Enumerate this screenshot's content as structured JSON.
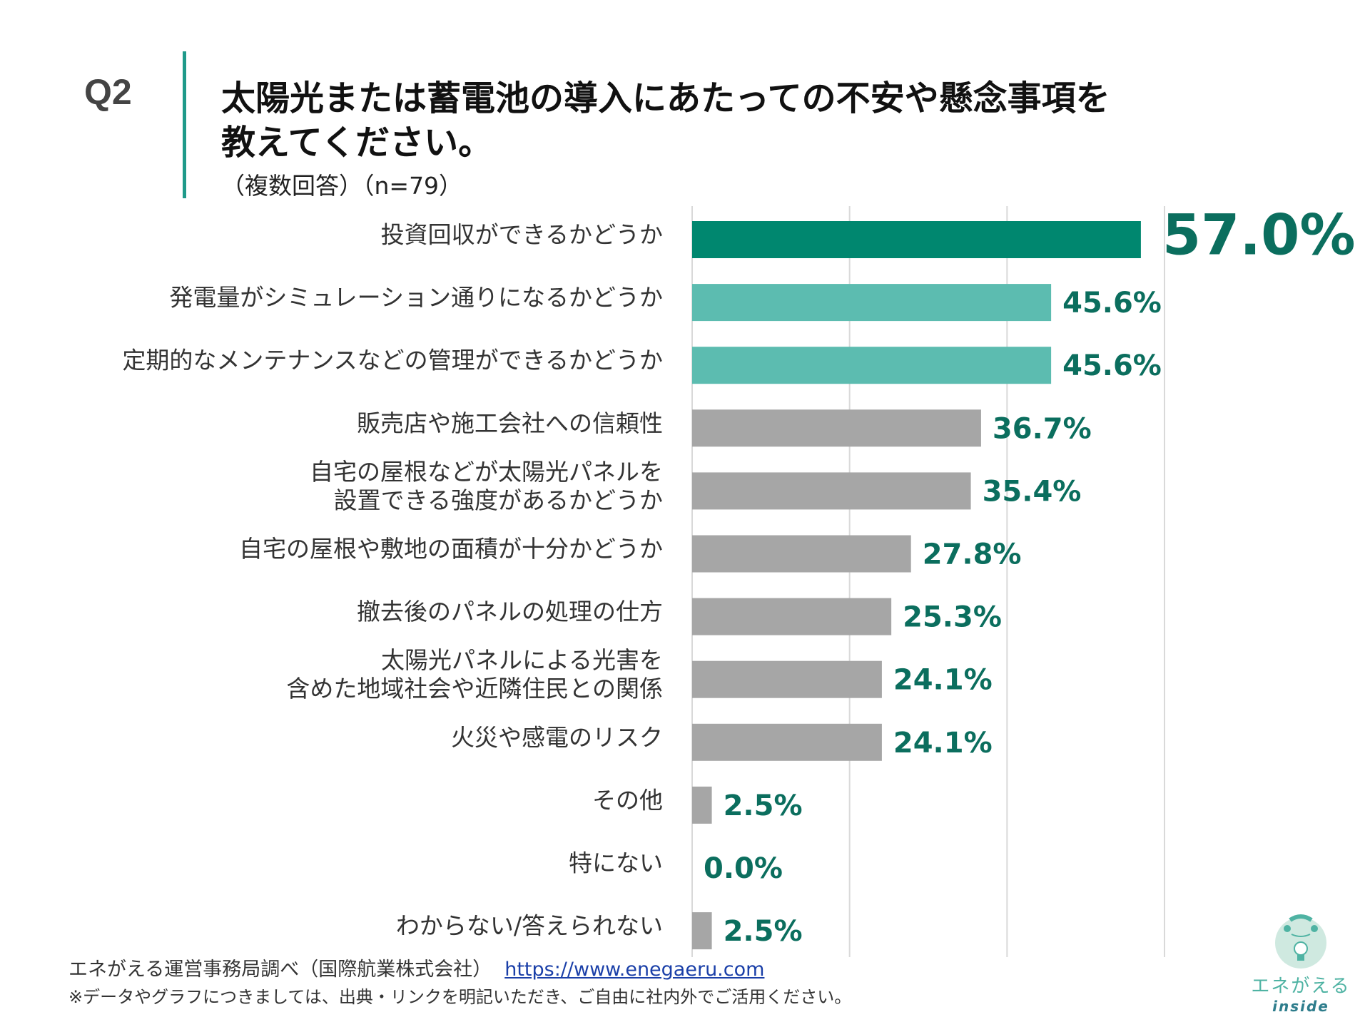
{
  "header": {
    "question_number": "Q2",
    "title_line1": "太陽光または蓄電池の導入にあたっての不安や懸念事項を",
    "title_line2": "教えてください。",
    "subtitle": "（複数回答）（n=79）"
  },
  "chart_data": {
    "type": "bar",
    "orientation": "horizontal",
    "categories": [
      [
        "投資回収ができるかどうか"
      ],
      [
        "発電量がシミュレーション通りになるかどうか"
      ],
      [
        "定期的なメンテナンスなどの管理ができるかどうか"
      ],
      [
        "販売店や施工会社への信頼性"
      ],
      [
        "自宅の屋根などが太陽光パネルを",
        "設置できる強度があるかどうか"
      ],
      [
        "自宅の屋根や敷地の面積が十分かどうか"
      ],
      [
        "撤去後のパネルの処理の仕方"
      ],
      [
        "太陽光パネルによる光害を",
        "含めた地域社会や近隣住民との関係"
      ],
      [
        "火災や感電のリスク"
      ],
      [
        "その他"
      ],
      [
        "特にない"
      ],
      [
        "わからない/答えられない"
      ]
    ],
    "values": [
      57.0,
      45.6,
      45.6,
      36.7,
      35.4,
      27.8,
      25.3,
      24.1,
      24.1,
      2.5,
      0.0,
      2.5
    ],
    "value_labels": [
      "57.0%",
      "45.6%",
      "45.6%",
      "36.7%",
      "35.4%",
      "27.8%",
      "25.3%",
      "24.1%",
      "24.1%",
      "2.5%",
      "0.0%",
      "2.5%"
    ],
    "bar_colors": [
      "#00876f",
      "#5cbcb0",
      "#5cbcb0",
      "#a6a6a6",
      "#a6a6a6",
      "#a6a6a6",
      "#a6a6a6",
      "#a6a6a6",
      "#a6a6a6",
      "#a6a6a6",
      "#a6a6a6",
      "#a6a6a6"
    ],
    "label_color": "#0b6e5e",
    "xlim": [
      0,
      60
    ],
    "gridlines": [
      0,
      20,
      40,
      60
    ],
    "grid": true
  },
  "footer": {
    "source": "エネがえる運営事務局調べ（国際航業株式会社）",
    "link": "https://www.enegaeru.com",
    "note": "※データやグラフにつきましては、出典・リンクを明記いただき、ご自由に社内外でご活用ください。"
  },
  "logo": {
    "text": "エネがえる",
    "sub": "inside"
  }
}
